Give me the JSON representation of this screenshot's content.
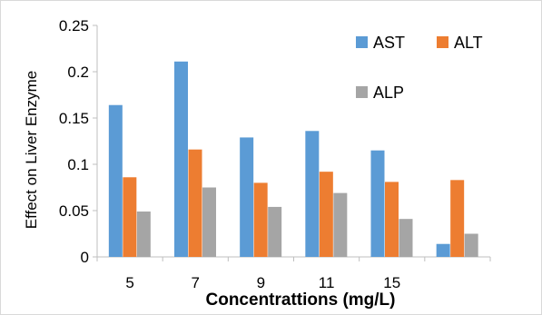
{
  "chart_data": {
    "type": "bar",
    "title": "",
    "xlabel": "Concentrattions (mg/L)",
    "ylabel": "Effect on Liver Enzyme",
    "categories": [
      "5",
      "7",
      "9",
      "11",
      "15",
      ""
    ],
    "series": [
      {
        "name": "AST",
        "color": "#5B9BD5",
        "values": [
          0.164,
          0.211,
          0.129,
          0.136,
          0.115,
          0.014
        ]
      },
      {
        "name": "ALT",
        "color": "#ED7D31",
        "values": [
          0.086,
          0.116,
          0.08,
          0.092,
          0.081,
          0.083
        ]
      },
      {
        "name": "ALP",
        "color": "#A5A5A5",
        "values": [
          0.049,
          0.075,
          0.054,
          0.069,
          0.041,
          0.025
        ]
      }
    ],
    "ylim": [
      0,
      0.25
    ],
    "yticks": [
      "0",
      "0.05",
      "0.1",
      "0.15",
      "0.2",
      "0.25"
    ],
    "grid": false,
    "legend": "top-right"
  }
}
